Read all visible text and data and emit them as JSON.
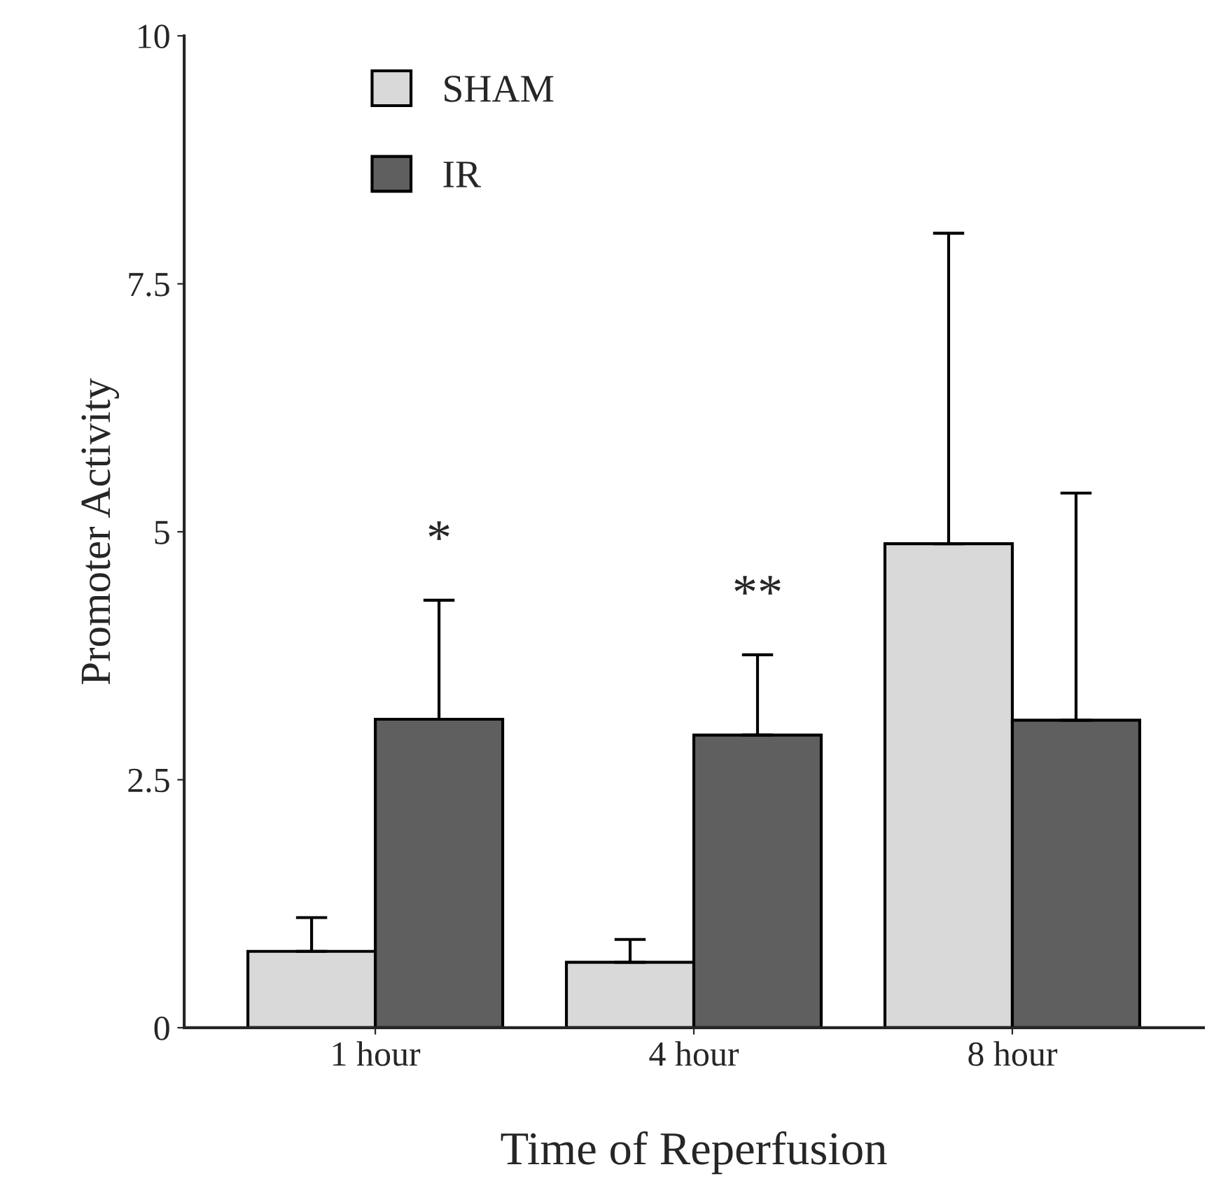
{
  "chart_data": {
    "type": "bar",
    "xlabel": "Time of Reperfusion",
    "ylabel": "Promoter Activity",
    "categories": [
      "1 hour",
      "4 hour",
      "8 hour"
    ],
    "series": [
      {
        "name": "SHAM",
        "color": "#d9d9d9",
        "values": [
          0.77,
          0.66,
          4.88
        ],
        "errors": [
          [
            0.77,
            1.11
          ],
          [
            0.66,
            0.89
          ],
          [
            4.88,
            8.01
          ]
        ]
      },
      {
        "name": "IR",
        "color": "#5f5f5f",
        "values": [
          3.11,
          2.95,
          3.1
        ],
        "errors": [
          [
            3.11,
            4.31
          ],
          [
            2.95,
            3.76
          ],
          [
            3.1,
            5.39
          ]
        ]
      }
    ],
    "annotations": [
      "*",
      "**"
    ],
    "ylim": [
      0,
      10
    ],
    "yticks": [
      0,
      2.5,
      5,
      7.5,
      10
    ],
    "grid": false,
    "legend": "top left"
  }
}
